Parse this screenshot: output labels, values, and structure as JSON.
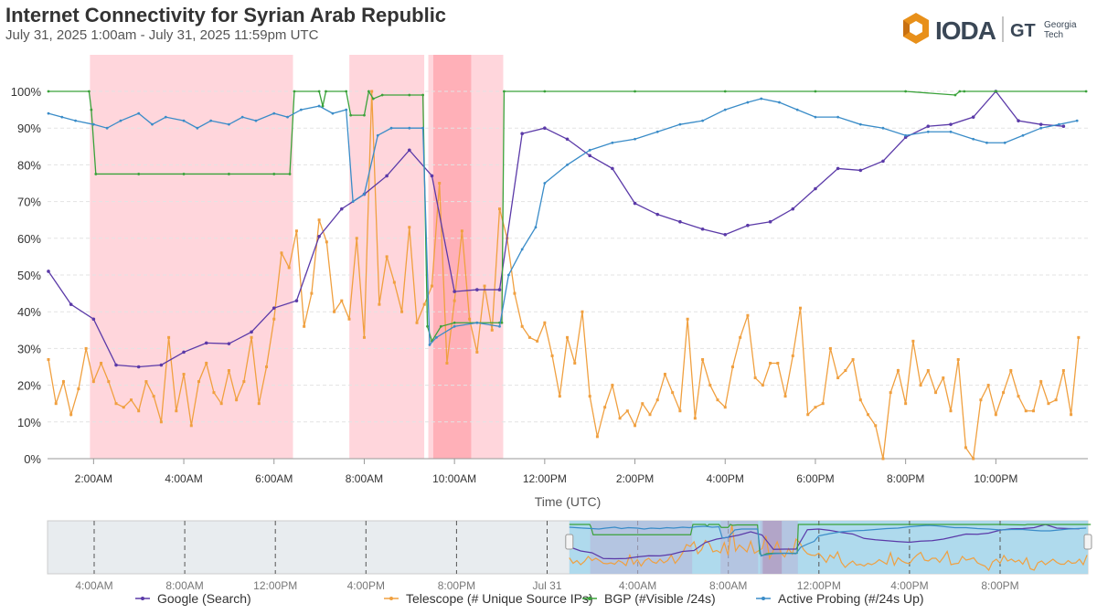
{
  "header": {
    "title": "Internet Connectivity for Syrian Arab Republic",
    "subtitle": "July 31, 2025 1:00am - July 31, 2025 11:59pm UTC",
    "logo_text": "IODA",
    "partner_logo_text": "GT Georgia Tech"
  },
  "colors": {
    "google": "#5b3aa8",
    "telescope": "#f0a040",
    "bgp": "#3aa23a",
    "active_probing": "#3a8cc8",
    "outage_shade": "#ffd6dc",
    "outage_shade_dark": "#ffb0b8",
    "navigator_selection": "#a8d8ec",
    "logo_orange": "#e8901a"
  },
  "chart_data": {
    "type": "line",
    "xlabel": "Time (UTC)",
    "ylabel": "",
    "x_unit": "hour of day (July 31, 2025, UTC)",
    "xlim": [
      1,
      24
    ],
    "ylim": [
      0,
      100
    ],
    "grid": true,
    "legend_position": "bottom",
    "x_ticks": [
      {
        "h": 2,
        "label": "2:00AM"
      },
      {
        "h": 4,
        "label": "4:00AM"
      },
      {
        "h": 6,
        "label": "6:00AM"
      },
      {
        "h": 8,
        "label": "8:00AM"
      },
      {
        "h": 10,
        "label": "10:00AM"
      },
      {
        "h": 12,
        "label": "12:00PM"
      },
      {
        "h": 14,
        "label": "2:00PM"
      },
      {
        "h": 16,
        "label": "4:00PM"
      },
      {
        "h": 18,
        "label": "6:00PM"
      },
      {
        "h": 20,
        "label": "8:00PM"
      },
      {
        "h": 22,
        "label": "10:00PM"
      }
    ],
    "y_ticks": [
      "0%",
      "10%",
      "20%",
      "30%",
      "40%",
      "50%",
      "60%",
      "70%",
      "80%",
      "90%",
      "100%"
    ],
    "outages": [
      {
        "start": 1.92,
        "end": 6.42,
        "level": "normal"
      },
      {
        "start": 7.67,
        "end": 9.33,
        "level": "normal"
      },
      {
        "start": 9.42,
        "end": 11.08,
        "level": "normal"
      },
      {
        "start": 9.53,
        "end": 10.37,
        "level": "severe"
      }
    ],
    "series": [
      {
        "key": "google",
        "name": "Google (Search)",
        "marker": "circle",
        "x": [
          1,
          1.5,
          2,
          2.5,
          3,
          3.5,
          4,
          4.5,
          5,
          5.5,
          6,
          6.5,
          7,
          7.5,
          8,
          8.5,
          9,
          9.5,
          10,
          10.5,
          11,
          11.5,
          12,
          12.5,
          13,
          13.5,
          14,
          14.5,
          15,
          15.5,
          16,
          16.5,
          17,
          17.5,
          18,
          18.5,
          19,
          19.5,
          20,
          20.5,
          21,
          21.5,
          22,
          22.5,
          23,
          23.5
        ],
        "y": [
          51,
          42,
          38,
          25.5,
          25,
          25.5,
          29,
          31.5,
          31.3,
          34.5,
          41,
          43,
          60.5,
          68,
          72,
          77,
          84,
          77,
          45.5,
          46,
          46,
          88.5,
          90,
          87,
          82.5,
          79,
          69.5,
          66.5,
          64.5,
          62.5,
          61,
          63.5,
          64.5,
          68,
          73.5,
          79,
          78.5,
          81,
          87.5,
          90.5,
          91,
          93,
          100,
          92,
          91,
          90.5
        ]
      },
      {
        "key": "telescope",
        "name": "Telescope (# Unique Source IPs)",
        "marker": "square",
        "x_start": 1,
        "x_step_minutes": 10,
        "y": [
          27,
          15,
          21,
          12,
          19,
          30,
          21,
          26,
          21,
          15,
          14,
          16,
          13,
          21,
          17,
          10,
          33,
          13,
          23,
          9,
          21,
          26,
          18,
          15,
          24,
          16,
          21,
          33,
          15,
          25,
          38,
          56,
          52,
          62,
          36,
          45,
          65,
          59,
          40,
          43,
          38,
          60,
          33,
          100,
          42,
          55,
          48,
          40,
          63,
          37,
          42,
          47,
          75,
          26,
          43,
          62,
          38,
          29,
          47,
          35,
          68,
          60,
          45,
          36,
          33,
          32,
          37,
          28,
          17,
          33,
          26,
          40,
          17,
          6,
          14,
          20,
          11,
          13,
          9,
          15,
          12,
          16,
          23,
          18,
          13,
          38,
          11,
          27,
          20,
          16,
          14,
          25,
          33,
          39,
          22,
          20,
          26,
          26,
          17,
          28,
          41,
          12,
          14,
          15,
          30,
          22,
          24,
          27,
          16,
          12,
          9,
          0,
          18,
          24,
          15,
          32,
          20,
          24,
          18,
          22,
          13,
          27,
          3,
          0,
          16,
          20,
          12,
          18,
          24,
          17,
          13,
          13,
          21,
          15,
          16,
          24,
          12,
          33
        ]
      },
      {
        "key": "bgp",
        "name": "BGP (#Visible /24s)",
        "marker": "dot",
        "x": [
          1,
          1.9,
          1.95,
          2.05,
          3,
          4,
          5,
          6,
          6.35,
          6.45,
          7,
          7.08,
          7.15,
          7.6,
          7.7,
          8,
          8.1,
          8.2,
          8.4,
          9,
          9.3,
          9.4,
          9.5,
          9.7,
          10,
          10.5,
          11,
          11.05,
          11.1,
          12,
          14,
          16,
          18,
          20,
          21.1,
          21.2,
          21.3,
          22,
          24
        ],
        "y": [
          100,
          100,
          95,
          77.5,
          77.5,
          77.5,
          77.5,
          77.5,
          77.5,
          100,
          100,
          96,
          100,
          100,
          93.5,
          93.5,
          100,
          98,
          99,
          99,
          99,
          36,
          32,
          36,
          37,
          37,
          37,
          37,
          100,
          100,
          100,
          100,
          100,
          100,
          99,
          100,
          100,
          100,
          100
        ]
      },
      {
        "key": "active_probing",
        "name": "Active Probing (#/24s Up)",
        "marker": "dot",
        "x": [
          1,
          1.3,
          1.6,
          2,
          2.3,
          2.6,
          3,
          3.3,
          3.6,
          4,
          4.3,
          4.6,
          5,
          5.3,
          5.6,
          6,
          6.3,
          6.6,
          7,
          7.3,
          7.6,
          7.75,
          8,
          8.3,
          8.6,
          9,
          9.3,
          9.45,
          9.6,
          10,
          10.5,
          11,
          11.2,
          11.5,
          11.8,
          12,
          12.5,
          13,
          13.5,
          14,
          14.5,
          15,
          15.5,
          16,
          16.5,
          16.8,
          17.2,
          17.6,
          18,
          18.5,
          19,
          19.5,
          20,
          20.5,
          21,
          21.5,
          21.8,
          22.2,
          22.6,
          23,
          23.4,
          23.8
        ],
        "y": [
          94,
          93,
          92,
          91,
          90,
          92,
          94,
          91,
          93,
          92,
          90,
          92,
          91,
          93,
          92,
          94,
          93,
          95,
          96,
          94,
          95,
          70,
          72,
          88,
          90,
          90,
          90,
          31,
          33,
          36,
          37,
          36,
          50,
          57,
          63,
          75,
          80,
          84,
          86,
          87,
          89,
          91,
          92,
          95,
          97,
          98,
          97,
          95,
          93,
          93,
          91,
          90,
          88,
          89,
          89,
          87,
          86,
          86,
          88,
          90,
          91,
          92
        ]
      }
    ]
  },
  "navigator": {
    "tick_labels": [
      "4:00AM",
      "8:00AM",
      "12:00PM",
      "4:00PM",
      "8:00PM",
      "Jul 31",
      "4:00AM",
      "8:00AM",
      "12:00PM",
      "4:00PM",
      "8:00PM"
    ]
  },
  "legend": [
    {
      "key": "google",
      "label": "Google (Search)"
    },
    {
      "key": "telescope",
      "label": "Telescope (# Unique Source IPs)"
    },
    {
      "key": "bgp",
      "label": "BGP (#Visible /24s)"
    },
    {
      "key": "active_probing",
      "label": "Active Probing (#/24s Up)"
    }
  ]
}
